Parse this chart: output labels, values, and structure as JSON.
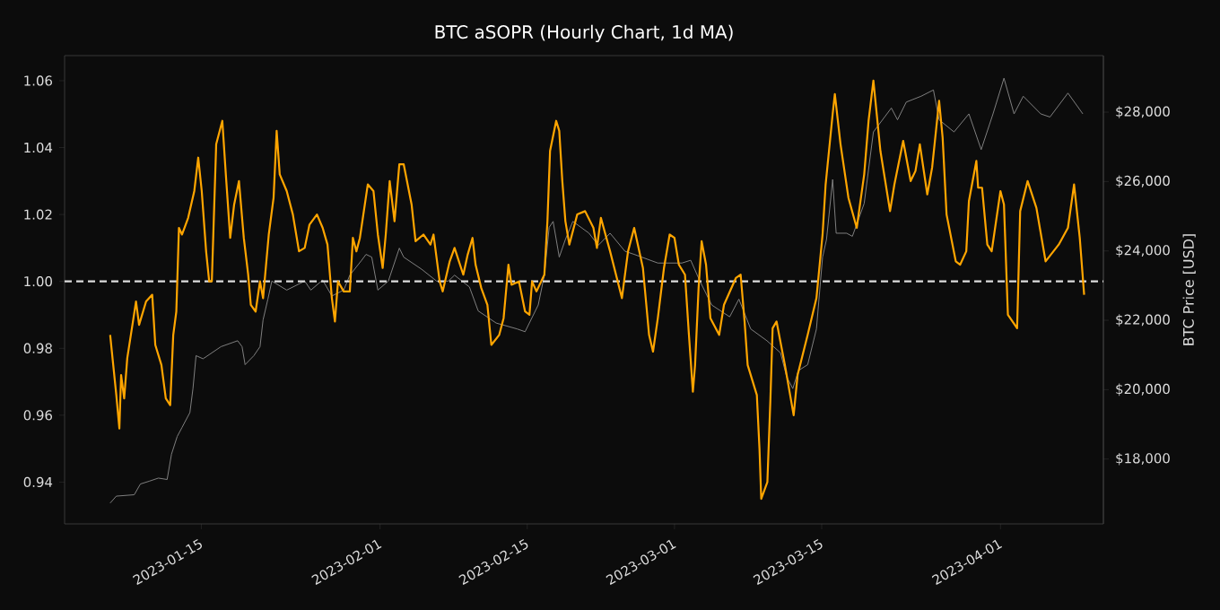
{
  "chart_data": {
    "type": "line",
    "title": "BTC aSOPR (Hourly Chart, 1d MA)",
    "y2label": "BTC Price [USD]",
    "xlim": [
      "2023-01-02T00:00",
      "2023-04-10T19:00"
    ],
    "xticks": [
      "2023-01-15",
      "2023-02-01",
      "2023-02-15",
      "2023-03-01",
      "2023-03-15",
      "2023-04-01"
    ],
    "ylim": [
      0.9275,
      1.0675
    ],
    "yticks": [
      {
        "value": 0.94,
        "label": "0.94"
      },
      {
        "value": 0.96,
        "label": "0.96"
      },
      {
        "value": 0.98,
        "label": "0.98"
      },
      {
        "value": 1.0,
        "label": "1.00"
      },
      {
        "value": 1.02,
        "label": "1.02"
      },
      {
        "value": 1.04,
        "label": "1.04"
      },
      {
        "value": 1.06,
        "label": "1.06"
      }
    ],
    "y2lim": [
      16130,
      29630
    ],
    "y2ticks": [
      {
        "value": 18000,
        "label": "$18,000"
      },
      {
        "value": 20000,
        "label": "$20,000"
      },
      {
        "value": 22000,
        "label": "$22,000"
      },
      {
        "value": 24000,
        "label": "$24,000"
      },
      {
        "value": 26000,
        "label": "$26,000"
      },
      {
        "value": 28000,
        "label": "$28,000"
      }
    ],
    "marker": "none",
    "line_style": "solid",
    "ref_lines": [
      {
        "axis": "y",
        "value": 1.0,
        "color": "#dddddd",
        "line_style": "dashed"
      }
    ],
    "series": [
      {
        "color": "#808080",
        "axis": "y2",
        "x": [
          "2023-01-06T08:00",
          "2023-01-06T22:00",
          "2023-01-08T15:00",
          "2023-01-09T05:00",
          "2023-01-10T01:00",
          "2023-01-10T22:00",
          "2023-01-11T18:00",
          "2023-01-12T04:00",
          "2023-01-12T17:00",
          "2023-01-13T04:00",
          "2023-01-13T22:00",
          "2023-01-14T05:00",
          "2023-01-14T12:00",
          "2023-01-15T04:00",
          "2023-01-16T21:00",
          "2023-01-18T11:00",
          "2023-01-18T21:00",
          "2023-01-19T04:00",
          "2023-01-20T00:00",
          "2023-01-20T14:00",
          "2023-01-20T21:00",
          "2023-01-21T08:00",
          "2023-01-21T17:00",
          "2023-01-23T03:00",
          "2023-01-24T20:00",
          "2023-01-25T10:00",
          "2023-01-26T13:00",
          "2023-01-27T10:00",
          "2023-01-28T13:00",
          "2023-01-29T03:00",
          "2023-01-30T06:00",
          "2023-01-30T16:00",
          "2023-01-31T05:00",
          "2023-01-31T19:00",
          "2023-02-01T19:00",
          "2023-02-02T20:00",
          "2023-02-03T06:00",
          "2023-02-04T23:00",
          "2023-02-06T09:00",
          "2023-02-07T12:00",
          "2023-02-08T02:00",
          "2023-02-09T12:00",
          "2023-02-10T08:00",
          "2023-02-12T01:00",
          "2023-02-14T01:00",
          "2023-02-14T19:00",
          "2023-02-16T01:00",
          "2023-02-16T15:00",
          "2023-02-17T02:00",
          "2023-02-17T11:00",
          "2023-02-18T01:00",
          "2023-02-18T15:00",
          "2023-02-19T08:00",
          "2023-02-20T21:00",
          "2023-02-21T18:00",
          "2023-02-22T21:00",
          "2023-02-24T07:00",
          "2023-02-25T04:00",
          "2023-02-27T10:00",
          "2023-03-01T17:00",
          "2023-03-02T13:00",
          "2023-03-03T10:00",
          "2023-03-04T13:00",
          "2023-03-06T06:00",
          "2023-03-07T03:00",
          "2023-03-08T06:00",
          "2023-03-09T19:00",
          "2023-03-11T02:00",
          "2023-03-11T16:00",
          "2023-03-12T06:00",
          "2023-03-12T19:00",
          "2023-03-13T16:00",
          "2023-03-14T12:00",
          "2023-03-15T02:00",
          "2023-03-15T11:00",
          "2023-03-16T01:00",
          "2023-03-16T09:00",
          "2023-03-17T09:00",
          "2023-03-17T22:00",
          "2023-03-19T01:00",
          "2023-03-19T22:00",
          "2023-03-21T15:00",
          "2023-03-22T05:00",
          "2023-03-23T01:00",
          "2023-03-24T11:00",
          "2023-03-25T15:00",
          "2023-03-26T04:00",
          "2023-03-27T14:00",
          "2023-03-29T00:00",
          "2023-03-30T04:00",
          "2023-03-31T07:00",
          "2023-04-01T08:00",
          "2023-04-02T07:00",
          "2023-04-03T04:00",
          "2023-04-04T20:00",
          "2023-04-05T17:00",
          "2023-04-07T10:00",
          "2023-04-08T20:00"
        ],
        "values": [
          16730,
          16930,
          16970,
          17280,
          17360,
          17450,
          17410,
          18140,
          18650,
          18910,
          19340,
          20030,
          20980,
          20890,
          21240,
          21410,
          21240,
          20720,
          20980,
          21240,
          22010,
          22610,
          23130,
          22870,
          23130,
          22870,
          23160,
          22700,
          22870,
          23300,
          23730,
          23900,
          23820,
          22870,
          23130,
          24080,
          23820,
          23470,
          23130,
          23130,
          23300,
          22960,
          22270,
          21920,
          21750,
          21670,
          22440,
          23300,
          24680,
          24850,
          23820,
          24330,
          24850,
          24510,
          24160,
          24510,
          23990,
          23900,
          23650,
          23650,
          23730,
          23130,
          22440,
          22100,
          22610,
          21750,
          21410,
          21060,
          20370,
          20030,
          20550,
          20720,
          21750,
          23820,
          24330,
          26060,
          24510,
          24510,
          24420,
          25370,
          27430,
          28120,
          27780,
          28290,
          28460,
          28640,
          27780,
          27430,
          27950,
          26920,
          27950,
          28980,
          27950,
          28460,
          27950,
          27860,
          28550,
          27950
        ]
      },
      {
        "color": "#ffa500",
        "x": [
          "2023-01-06T08:00",
          "2023-01-06T15:00",
          "2023-01-06T22:00",
          "2023-01-07T05:00",
          "2023-01-07T09:00",
          "2023-01-07T16:00",
          "2023-01-07T23:00",
          "2023-01-08T12:00",
          "2023-01-08T19:00",
          "2023-01-09T02:00",
          "2023-01-09T18:00",
          "2023-01-10T08:00",
          "2023-01-10T15:00",
          "2023-01-11T05:00",
          "2023-01-11T15:00",
          "2023-01-12T01:00",
          "2023-01-12T08:00",
          "2023-01-12T15:00",
          "2023-01-12T21:00",
          "2023-01-13T04:00",
          "2023-01-13T18:00",
          "2023-01-14T08:00",
          "2023-01-14T17:00",
          "2023-01-15T01:00",
          "2023-01-15T11:00",
          "2023-01-15T18:00",
          "2023-01-16T00:00",
          "2023-01-16T10:00",
          "2023-01-17T00:00",
          "2023-01-17T08:00",
          "2023-01-17T18:00",
          "2023-01-18T03:00",
          "2023-01-18T14:00",
          "2023-01-19T01:00",
          "2023-01-19T11:00",
          "2023-01-19T17:00",
          "2023-01-20T04:00",
          "2023-01-20T14:00",
          "2023-01-20T21:00",
          "2023-01-21T10:00",
          "2023-01-21T21:00",
          "2023-01-22T04:00",
          "2023-01-22T11:00",
          "2023-01-23T03:00",
          "2023-01-23T17:00",
          "2023-01-24T07:00",
          "2023-01-24T20:00",
          "2023-01-25T07:00",
          "2023-01-26T00:00",
          "2023-01-26T13:00",
          "2023-01-27T00:00",
          "2023-01-27T10:00",
          "2023-01-27T17:00",
          "2023-01-28T00:00",
          "2023-01-28T13:00",
          "2023-01-29T03:00",
          "2023-01-29T10:00",
          "2023-01-29T18:00",
          "2023-01-30T02:00",
          "2023-01-30T20:00",
          "2023-01-31T09:00",
          "2023-01-31T19:00",
          "2023-02-01T06:00",
          "2023-02-01T13:00",
          "2023-02-01T22:00",
          "2023-02-02T09:00",
          "2023-02-02T20:00",
          "2023-02-03T06:00",
          "2023-02-04T00:00",
          "2023-02-04T09:00",
          "2023-02-05T03:00",
          "2023-02-05T19:00",
          "2023-02-06T02:00",
          "2023-02-06T16:00",
          "2023-02-06T23:00",
          "2023-02-07T15:00",
          "2023-02-08T02:00",
          "2023-02-08T22:00",
          "2023-02-09T08:00",
          "2023-02-09T19:00",
          "2023-02-10T02:00",
          "2023-02-10T15:00",
          "2023-02-11T05:00",
          "2023-02-11T14:00",
          "2023-02-12T08:00",
          "2023-02-12T18:00",
          "2023-02-13T05:00",
          "2023-02-13T12:00",
          "2023-02-14T05:00",
          "2023-02-14T19:00",
          "2023-02-15T05:00",
          "2023-02-15T11:00",
          "2023-02-15T21:00",
          "2023-02-16T15:00",
          "2023-02-16T22:00",
          "2023-02-17T04:00",
          "2023-02-17T18:00",
          "2023-02-18T01:00",
          "2023-02-18T08:00",
          "2023-02-18T15:00",
          "2023-02-19T00:00",
          "2023-02-19T18:00",
          "2023-02-20T12:00",
          "2023-02-21T07:00",
          "2023-02-21T15:00",
          "2023-02-22T00:00",
          "2023-02-22T21:00",
          "2023-02-24T00:00",
          "2023-02-24T14:00",
          "2023-02-25T04:00",
          "2023-02-26T00:00",
          "2023-02-26T14:00",
          "2023-02-26T23:00",
          "2023-02-27T10:00",
          "2023-02-28T00:00",
          "2023-02-28T13:00",
          "2023-03-01T00:00",
          "2023-03-01T10:00",
          "2023-03-02T00:00",
          "2023-03-02T09:00",
          "2023-03-02T18:00",
          "2023-03-02T23:00",
          "2023-03-03T07:00",
          "2023-03-03T14:00",
          "2023-03-04T00:00",
          "2023-03-04T10:00",
          "2023-03-05T06:00",
          "2023-03-05T17:00",
          "2023-03-06T20:00",
          "2023-03-07T07:00",
          "2023-03-07T16:00",
          "2023-03-07T23:00",
          "2023-03-08T20:00",
          "2023-03-09T02:00",
          "2023-03-09T06:00",
          "2023-03-09T20:00",
          "2023-03-10T03:00",
          "2023-03-10T08:00",
          "2023-03-10T17:00",
          "2023-03-11T12:00",
          "2023-03-12T08:00",
          "2023-03-12T17:00",
          "2023-03-13T16:00",
          "2023-03-14T12:00",
          "2023-03-15T02:00",
          "2023-03-15T09:00",
          "2023-03-16T01:00",
          "2023-03-16T06:00",
          "2023-03-16T19:00",
          "2023-03-17T13:00",
          "2023-03-18T08:00",
          "2023-03-19T01:00",
          "2023-03-19T11:00",
          "2023-03-19T22:00",
          "2023-03-20T14:00",
          "2023-03-21T12:00",
          "2023-03-21T22:00",
          "2023-03-22T18:00",
          "2023-03-23T11:00",
          "2023-03-23T22:00",
          "2023-03-24T08:00",
          "2023-03-25T01:00",
          "2023-03-25T12:00",
          "2023-03-26T04:00",
          "2023-03-26T12:00",
          "2023-03-26T21:00",
          "2023-03-27T18:00",
          "2023-03-28T04:00",
          "2023-03-28T18:00",
          "2023-03-29T00:00",
          "2023-03-29T17:00",
          "2023-03-29T21:00",
          "2023-03-30T06:00",
          "2023-03-30T18:00",
          "2023-03-31T04:00",
          "2023-04-01T00:00",
          "2023-04-01T08:00",
          "2023-04-01T17:00",
          "2023-04-02T14:00",
          "2023-04-02T21:00",
          "2023-04-03T14:00",
          "2023-04-04T10:00",
          "2023-04-05T07:00",
          "2023-04-06T13:00",
          "2023-04-07T10:00",
          "2023-04-08T00:00",
          "2023-04-08T13:00",
          "2023-04-08T23:00"
        ],
        "values": [
          0.984,
          0.975,
          0.966,
          0.956,
          0.972,
          0.965,
          0.977,
          0.988,
          0.994,
          0.987,
          0.994,
          0.996,
          0.981,
          0.975,
          0.965,
          0.963,
          0.984,
          0.991,
          1.016,
          1.014,
          1.019,
          1.027,
          1.037,
          1.027,
          1.009,
          1.0,
          1.0,
          1.041,
          1.048,
          1.032,
          1.013,
          1.023,
          1.03,
          1.013,
          1.002,
          0.993,
          0.991,
          1.0,
          0.995,
          1.014,
          1.025,
          1.045,
          1.032,
          1.027,
          1.02,
          1.009,
          1.01,
          1.017,
          1.02,
          1.016,
          1.011,
          0.995,
          0.988,
          1.0,
          0.997,
          0.997,
          1.013,
          1.009,
          1.013,
          1.029,
          1.027,
          1.014,
          1.004,
          1.014,
          1.03,
          1.018,
          1.035,
          1.035,
          1.023,
          1.012,
          1.014,
          1.011,
          1.014,
          1.0,
          0.997,
          1.006,
          1.01,
          1.002,
          1.008,
          1.013,
          1.005,
          0.998,
          0.993,
          0.981,
          0.984,
          0.989,
          1.005,
          0.999,
          1.0,
          0.991,
          0.99,
          1.0,
          0.997,
          1.002,
          1.018,
          1.039,
          1.048,
          1.045,
          1.03,
          1.018,
          1.011,
          1.02,
          1.021,
          1.016,
          1.01,
          1.019,
          1.009,
          0.995,
          1.009,
          1.016,
          1.004,
          0.984,
          0.979,
          0.989,
          1.004,
          1.014,
          1.013,
          1.005,
          1.002,
          0.984,
          0.967,
          0.975,
          0.998,
          1.012,
          1.005,
          0.989,
          0.984,
          0.993,
          1.001,
          1.002,
          0.988,
          0.975,
          0.966,
          0.95,
          0.935,
          0.94,
          0.965,
          0.986,
          0.988,
          0.975,
          0.96,
          0.972,
          0.984,
          0.995,
          1.014,
          1.029,
          1.05,
          1.056,
          1.041,
          1.025,
          1.016,
          1.032,
          1.048,
          1.06,
          1.039,
          1.021,
          1.029,
          1.042,
          1.03,
          1.033,
          1.041,
          1.026,
          1.034,
          1.054,
          1.043,
          1.02,
          1.006,
          1.005,
          1.009,
          1.024,
          1.036,
          1.028,
          1.028,
          1.011,
          1.009,
          1.027,
          1.023,
          0.99,
          0.986,
          1.021,
          1.03,
          1.022,
          1.006,
          1.011,
          1.016,
          1.029,
          1.013,
          0.996
        ]
      }
    ]
  }
}
